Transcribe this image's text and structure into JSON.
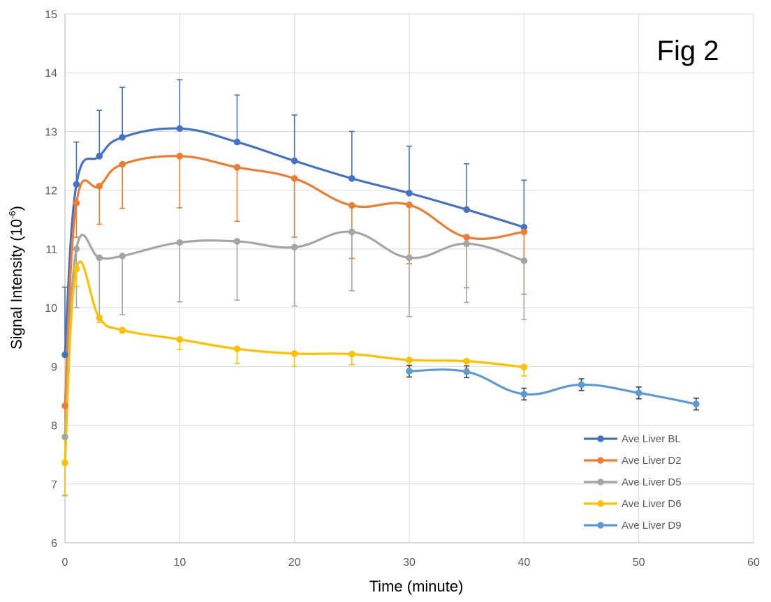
{
  "chart_data": {
    "type": "line",
    "title": "",
    "annotation": "Fig 2",
    "xlabel": "Time (minute)",
    "ylabel_main": "Signal Intensity (10",
    "ylabel_sup": "-6",
    "ylabel_close": ")",
    "xlim": [
      0,
      60
    ],
    "ylim": [
      6,
      15
    ],
    "x_ticks": [
      0,
      10,
      20,
      30,
      40,
      50,
      60
    ],
    "y_ticks": [
      6,
      7,
      8,
      9,
      10,
      11,
      12,
      13,
      14,
      15
    ],
    "grid": true,
    "legend_position": "bottom-right",
    "series": [
      {
        "name": "Ave Liver BL",
        "color": "#4472C4",
        "error_direction": "up",
        "x": [
          0,
          1,
          3,
          5,
          10,
          15,
          20,
          25,
          30,
          35,
          40
        ],
        "y": [
          9.2,
          12.1,
          12.58,
          12.9,
          13.05,
          12.82,
          12.5,
          12.2,
          11.95,
          11.67,
          11.37
        ],
        "err": [
          1.15,
          0.72,
          0.78,
          0.85,
          0.83,
          0.8,
          0.78,
          0.8,
          0.8,
          0.78,
          0.8
        ]
      },
      {
        "name": "Ave Liver D2",
        "color": "#ED7D31",
        "error_direction": "down",
        "x": [
          0,
          1,
          3,
          5,
          10,
          15,
          20,
          25,
          30,
          35,
          40
        ],
        "y": [
          8.33,
          11.78,
          12.07,
          12.44,
          12.58,
          12.39,
          12.2,
          11.74,
          11.75,
          11.2,
          11.29
        ],
        "err": [
          0.55,
          0.58,
          0.65,
          0.75,
          0.88,
          0.92,
          1.0,
          0.9,
          1.0,
          0.86,
          1.06
        ]
      },
      {
        "name": "Ave Liver D5",
        "color": "#A5A5A5",
        "error_direction": "down",
        "x": [
          0,
          1,
          3,
          5,
          10,
          15,
          20,
          25,
          30,
          35,
          40
        ],
        "y": [
          7.8,
          11.0,
          10.85,
          10.88,
          11.11,
          11.13,
          11.03,
          11.29,
          10.85,
          11.09,
          10.8
        ],
        "err": [
          1.0,
          1.0,
          1.05,
          1.0,
          1.01,
          1.0,
          1.0,
          1.0,
          1.0,
          1.0,
          1.0
        ]
      },
      {
        "name": "Ave Liver D6",
        "color": "#FFC000",
        "error_direction": "down",
        "x": [
          0,
          1,
          3,
          5,
          10,
          15,
          20,
          25,
          30,
          35,
          40
        ],
        "y": [
          7.36,
          10.66,
          9.83,
          9.62,
          9.46,
          9.3,
          9.22,
          9.21,
          9.11,
          9.09,
          8.99
        ],
        "err": [
          0.55,
          0.3,
          0.08,
          0.05,
          0.17,
          0.25,
          0.22,
          0.18,
          0.1,
          0.12,
          0.15
        ]
      },
      {
        "name": "Ave Liver D9",
        "color": "#5B9BD5",
        "error_direction": "both",
        "x": [
          30,
          35,
          40,
          45,
          50,
          55
        ],
        "y": [
          8.92,
          8.91,
          8.53,
          8.69,
          8.55,
          8.36
        ],
        "err": [
          0.1,
          0.1,
          0.1,
          0.1,
          0.1,
          0.1
        ]
      }
    ]
  }
}
